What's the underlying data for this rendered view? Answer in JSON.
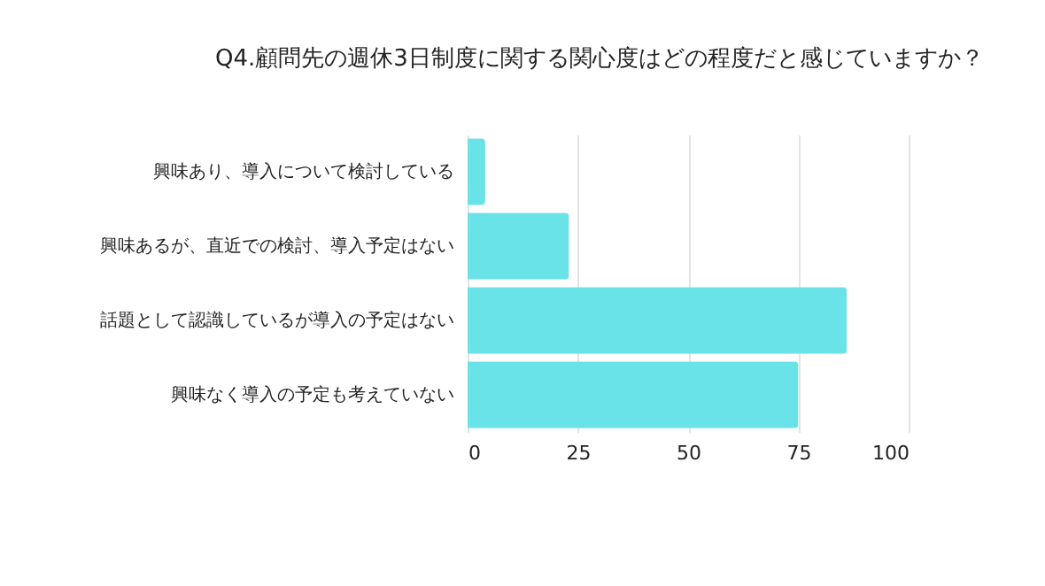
{
  "chart_data": {
    "type": "bar",
    "orientation": "horizontal",
    "title": "Q4.顧問先の週休3日制度に関する関心度はどの程度だと感じていますか？",
    "categories": [
      "興味あり、導入について検討している",
      "興味あるが、直近での検討、導入予定はない",
      "話題として認識しているが導入の予定はない",
      "興味なく導入の予定も考えていない"
    ],
    "values": [
      4,
      23,
      86,
      75
    ],
    "color": "#6ae3e8",
    "xlim": [
      0,
      100
    ],
    "xticks": [
      0,
      25,
      50,
      75,
      100
    ],
    "grid": "x"
  }
}
